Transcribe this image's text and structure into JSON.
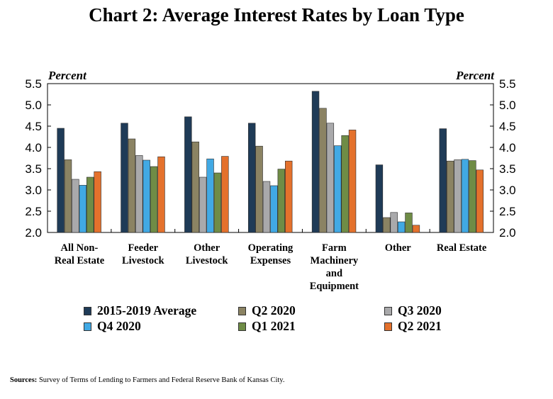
{
  "title": "Chart 2: Average Interest Rates by Loan Type",
  "sources_label": "Sources:",
  "sources_text": "Survey of Terms of Lending to Farmers and Federal Reserve Bank of Kansas City.",
  "chart_data": {
    "type": "bar",
    "title": "Chart 2: Average Interest Rates by Loan Type",
    "ylabel_left": "Percent",
    "ylabel_right": "Percent",
    "ylim": [
      2.0,
      5.5
    ],
    "yticks": [
      "2.0",
      "2.5",
      "3.0",
      "3.5",
      "4.0",
      "4.5",
      "5.0",
      "5.5"
    ],
    "grid": false,
    "legend_position": "bottom",
    "categories": [
      [
        "All Non-",
        "Real Estate"
      ],
      [
        "Feeder",
        "Livestock"
      ],
      [
        "Other",
        "Livestock"
      ],
      [
        "Operating",
        "Expenses"
      ],
      [
        "Farm",
        "Machinery",
        "and",
        "Equipment"
      ],
      [
        "Other"
      ],
      [
        "Real Estate"
      ]
    ],
    "series": [
      {
        "name": "2015-2019 Average",
        "color": "#1f3b57",
        "values": [
          4.45,
          4.57,
          4.72,
          4.57,
          5.32,
          3.59,
          4.44
        ]
      },
      {
        "name": "Q2 2020",
        "color": "#8b8363",
        "values": [
          3.71,
          4.2,
          4.13,
          4.03,
          4.92,
          2.35,
          3.68
        ]
      },
      {
        "name": "Q3 2020",
        "color": "#a9a9ab",
        "values": [
          3.25,
          3.81,
          3.3,
          3.2,
          4.57,
          2.47,
          3.71
        ]
      },
      {
        "name": "Q4 2020",
        "color": "#41a9e4",
        "values": [
          3.11,
          3.7,
          3.73,
          3.1,
          4.04,
          2.25,
          3.72
        ]
      },
      {
        "name": "Q1 2021",
        "color": "#6f8c46",
        "values": [
          3.3,
          3.55,
          3.4,
          3.49,
          4.28,
          2.46,
          3.69
        ]
      },
      {
        "name": "Q2 2021",
        "color": "#e4712c",
        "values": [
          3.43,
          3.78,
          3.79,
          3.68,
          4.41,
          2.17,
          3.47
        ]
      }
    ]
  }
}
